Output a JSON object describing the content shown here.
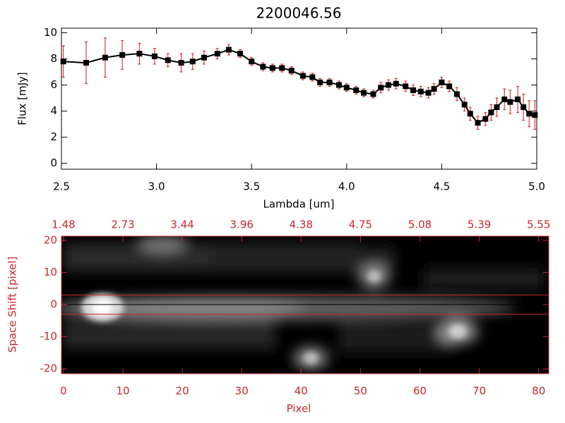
{
  "chart_data": [
    {
      "type": "line",
      "title": "2200046.56",
      "xlabel": "Lambda [um]",
      "ylabel": "Flux [mJy]",
      "x": [
        2.51,
        2.63,
        2.73,
        2.82,
        2.91,
        2.99,
        3.06,
        3.13,
        3.19,
        3.25,
        3.32,
        3.38,
        3.44,
        3.5,
        3.56,
        3.61,
        3.66,
        3.71,
        3.77,
        3.82,
        3.86,
        3.91,
        3.96,
        4.0,
        4.05,
        4.09,
        4.14,
        4.18,
        4.22,
        4.26,
        4.31,
        4.35,
        4.39,
        4.43,
        4.46,
        4.5,
        4.54,
        4.58,
        4.62,
        4.65,
        4.69,
        4.73,
        4.76,
        4.79,
        4.83,
        4.86,
        4.9,
        4.93,
        4.96,
        4.99
      ],
      "series": [
        {
          "color": "#000000",
          "error_color": "#d01818",
          "values": [
            7.8,
            7.7,
            8.1,
            8.3,
            8.4,
            8.2,
            7.9,
            7.7,
            7.8,
            8.1,
            8.4,
            8.7,
            8.4,
            7.8,
            7.4,
            7.3,
            7.3,
            7.1,
            6.7,
            6.6,
            6.2,
            6.2,
            6.0,
            5.8,
            5.6,
            5.4,
            5.3,
            5.8,
            6.0,
            6.1,
            5.9,
            5.6,
            5.5,
            5.4,
            5.7,
            6.2,
            5.9,
            5.3,
            4.5,
            3.8,
            3.1,
            3.4,
            3.9,
            4.3,
            4.9,
            4.7,
            4.9,
            4.3,
            3.8,
            3.7
          ],
          "errors": [
            1.2,
            1.6,
            1.5,
            1.1,
            0.8,
            0.6,
            0.5,
            0.7,
            0.6,
            0.5,
            0.4,
            0.4,
            0.3,
            0.3,
            0.3,
            0.3,
            0.3,
            0.3,
            0.3,
            0.3,
            0.3,
            0.3,
            0.3,
            0.3,
            0.3,
            0.3,
            0.3,
            0.4,
            0.4,
            0.4,
            0.4,
            0.4,
            0.4,
            0.4,
            0.4,
            0.4,
            0.4,
            0.5,
            0.5,
            0.5,
            0.5,
            0.5,
            0.6,
            0.7,
            0.8,
            0.9,
            1.0,
            1.0,
            1.0,
            1.1
          ]
        }
      ],
      "xlim": [
        2.5,
        5.0
      ],
      "ylim": [
        -0.45,
        10.35
      ],
      "xticks": [
        2.5,
        {
          "value": 3,
          "label": "3.0"
        },
        3.5,
        {
          "value": 4,
          "label": "4.0"
        },
        4.5,
        {
          "value": 5,
          "label": "5.0"
        }
      ],
      "yticks": [
        0,
        2,
        4,
        6,
        8,
        10
      ]
    },
    {
      "type": "image",
      "xlabel": "Pixel",
      "ylabel": "Space Shift [pixel]",
      "color": "#c8282c",
      "xlim": [
        -0.35,
        81.7
      ],
      "ylim": [
        -21.5,
        21.3
      ],
      "xticks": [
        0,
        10,
        20,
        30,
        40,
        50,
        60,
        70,
        80
      ],
      "x2ticks": [
        {
          "value": 0,
          "label": "1.48"
        },
        {
          "value": 10,
          "label": "2.73"
        },
        {
          "value": 20,
          "label": "3.44"
        },
        {
          "value": 30,
          "label": "3.96"
        },
        {
          "value": 40,
          "label": "4.38"
        },
        {
          "value": 50,
          "label": "4.75"
        },
        {
          "value": 60,
          "label": "5.08"
        },
        {
          "value": 70,
          "label": "5.39"
        },
        {
          "value": 80,
          "label": "5.55"
        }
      ],
      "yticks": [
        -20,
        -10,
        0,
        10,
        20
      ],
      "aperture": [
        -3,
        3
      ],
      "trace": 0
    }
  ]
}
